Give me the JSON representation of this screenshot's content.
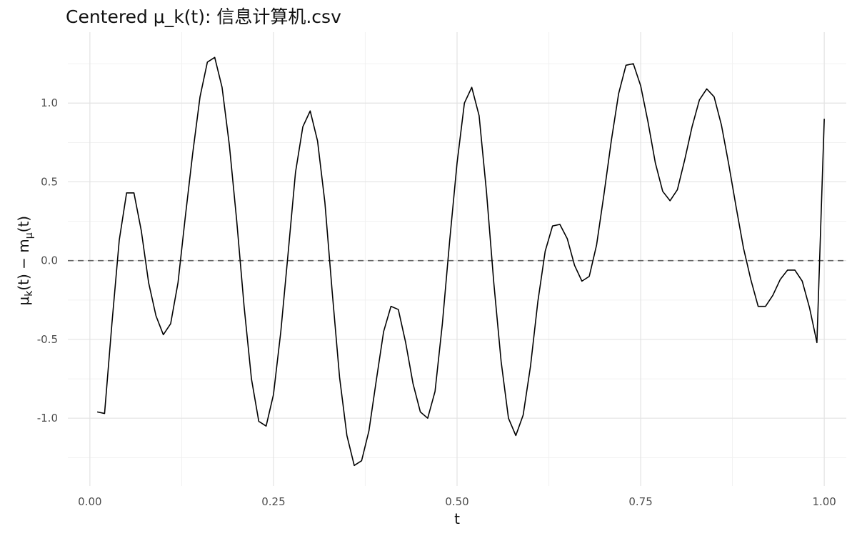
{
  "chart_data": {
    "type": "line",
    "title": "Centered μ_k(t): 信息计算机.csv",
    "xlabel": "t",
    "ylabel": {
      "mu": "μ",
      "sub_k": "k",
      "t1": "(t) − m",
      "sub_mu": "μ",
      "t2": "(t)"
    },
    "xlim": [
      -0.03,
      1.03
    ],
    "ylim": [
      -1.43,
      1.45
    ],
    "x_ticks": [
      0.0,
      0.25,
      0.5,
      0.75,
      1.0
    ],
    "x_tick_labels": [
      "0.00",
      "0.25",
      "0.50",
      "0.75",
      "1.00"
    ],
    "y_ticks": [
      -1.0,
      -0.5,
      0.0,
      0.5,
      1.0
    ],
    "y_tick_labels": [
      "-1.0",
      "-0.5",
      "0.0",
      "0.5",
      "1.0"
    ],
    "grid": true,
    "reference_line": {
      "y": 0.0,
      "style": "dashed",
      "color": "#666666"
    },
    "colors": {
      "line": "#000000",
      "grid_major": "#e3e3e3",
      "grid_minor": "#f1f1f1"
    },
    "series": [
      {
        "x": [
          0.01,
          0.02,
          0.03,
          0.04,
          0.05,
          0.06,
          0.07,
          0.08,
          0.09,
          0.1,
          0.11,
          0.12,
          0.13,
          0.14,
          0.15,
          0.16,
          0.17,
          0.18,
          0.19,
          0.2,
          0.21,
          0.22,
          0.23,
          0.24,
          0.25,
          0.26,
          0.27,
          0.28,
          0.29,
          0.3,
          0.31,
          0.32,
          0.33,
          0.34,
          0.35,
          0.36,
          0.37,
          0.38,
          0.39,
          0.4,
          0.41,
          0.42,
          0.43,
          0.44,
          0.45,
          0.46,
          0.47,
          0.48,
          0.49,
          0.5,
          0.51,
          0.52,
          0.53,
          0.54,
          0.55,
          0.56,
          0.57,
          0.58,
          0.59,
          0.6,
          0.61,
          0.62,
          0.63,
          0.64,
          0.65,
          0.66,
          0.67,
          0.68,
          0.69,
          0.7,
          0.71,
          0.72,
          0.73,
          0.74,
          0.75,
          0.76,
          0.77,
          0.78,
          0.79,
          0.8,
          0.81,
          0.82,
          0.83,
          0.84,
          0.85,
          0.86,
          0.87,
          0.88,
          0.89,
          0.9,
          0.91,
          0.92,
          0.93,
          0.94,
          0.95,
          0.96,
          0.97,
          0.98,
          0.99,
          1.0
        ],
        "y": [
          -0.96,
          -0.97,
          -0.4,
          0.13,
          0.43,
          0.43,
          0.19,
          -0.14,
          -0.35,
          -0.47,
          -0.4,
          -0.14,
          0.28,
          0.68,
          1.04,
          1.26,
          1.29,
          1.1,
          0.73,
          0.25,
          -0.29,
          -0.75,
          -1.02,
          -1.05,
          -0.85,
          -0.45,
          0.05,
          0.56,
          0.85,
          0.95,
          0.76,
          0.37,
          -0.2,
          -0.74,
          -1.11,
          -1.3,
          -1.27,
          -1.08,
          -0.76,
          -0.45,
          -0.29,
          -0.31,
          -0.52,
          -0.78,
          -0.96,
          -1.0,
          -0.83,
          -0.4,
          0.13,
          0.62,
          1.0,
          1.1,
          0.92,
          0.44,
          -0.14,
          -0.64,
          -1.0,
          -1.11,
          -0.98,
          -0.67,
          -0.26,
          0.06,
          0.22,
          0.23,
          0.14,
          -0.03,
          -0.13,
          -0.1,
          0.1,
          0.42,
          0.76,
          1.06,
          1.24,
          1.25,
          1.11,
          0.88,
          0.62,
          0.44,
          0.38,
          0.45,
          0.64,
          0.85,
          1.02,
          1.09,
          1.04,
          0.86,
          0.61,
          0.34,
          0.08,
          -0.12,
          -0.29,
          -0.29,
          -0.22,
          -0.12,
          -0.06,
          -0.06,
          -0.13,
          -0.3,
          -0.52,
          0.9
        ]
      }
    ]
  }
}
